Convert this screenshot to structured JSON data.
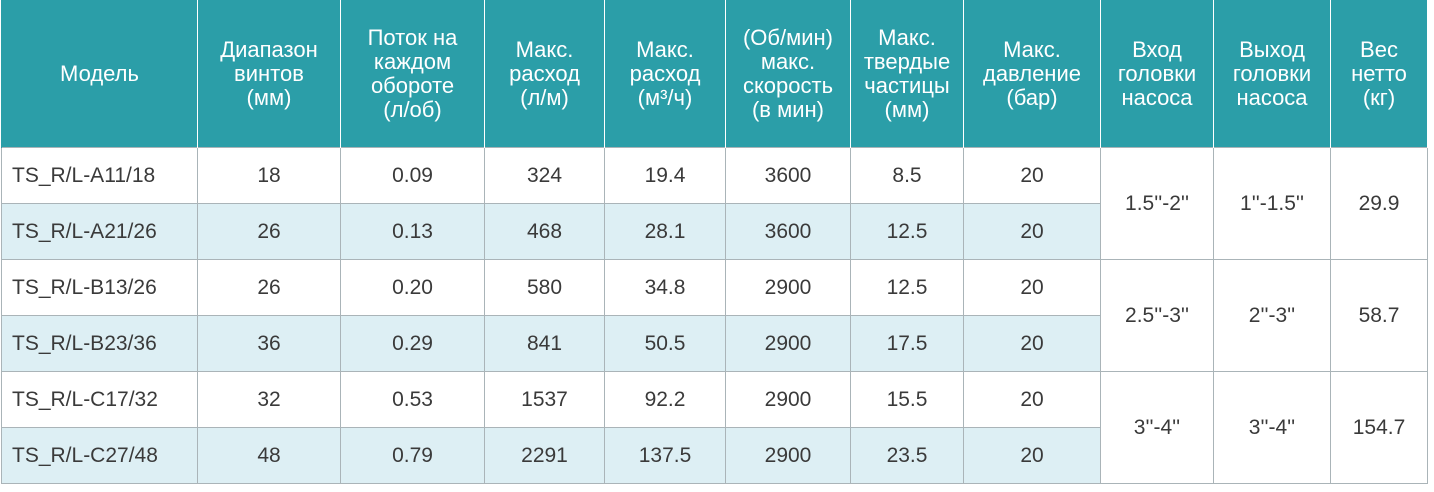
{
  "table": {
    "header": [
      [
        "Модель"
      ],
      [
        "Диапазон",
        "винтов",
        "(мм)"
      ],
      [
        "Поток на",
        "каждом",
        "обороте",
        "(л/об)"
      ],
      [
        "Макс.",
        "расход",
        "(л/м)"
      ],
      [
        "Макс.",
        "расход",
        "(м³/ч)"
      ],
      [
        "(Об/мин)",
        "макс.",
        "скорость",
        "(в мин)"
      ],
      [
        "Макс.",
        "твердые",
        "частицы",
        "(мм)"
      ],
      [
        "Макс.",
        "давление",
        "(бар)"
      ],
      [
        "Вход",
        "головки",
        "насоса"
      ],
      [
        "Выход",
        "головки",
        "насоса"
      ],
      [
        "Вес",
        "нетто",
        "(кг)"
      ]
    ],
    "rows": [
      [
        "TS_R/L-A11/18",
        "18",
        "0.09",
        "324",
        "19.4",
        "3600",
        "8.5",
        "20"
      ],
      [
        "TS_R/L-A21/26",
        "26",
        "0.13",
        "468",
        "28.1",
        "3600",
        "12.5",
        "20"
      ],
      [
        "TS_R/L-B13/26",
        "26",
        "0.20",
        "580",
        "34.8",
        "2900",
        "12.5",
        "20"
      ],
      [
        "TS_R/L-B23/36",
        "36",
        "0.29",
        "841",
        "50.5",
        "2900",
        "17.5",
        "20"
      ],
      [
        "TS_R/L-C17/32",
        "32",
        "0.53",
        "1537",
        "92.2",
        "2900",
        "15.5",
        "20"
      ],
      [
        "TS_R/L-C27/48",
        "48",
        "0.79",
        "2291",
        "137.5",
        "2900",
        "23.5",
        "20"
      ]
    ],
    "groups": [
      [
        "1.5''-2''",
        "1''-1.5''",
        "29.9"
      ],
      [
        "2.5''-3''",
        "2''-3''",
        "58.7"
      ],
      [
        "3''-4''",
        "3''-4''",
        "154.7"
      ]
    ]
  }
}
